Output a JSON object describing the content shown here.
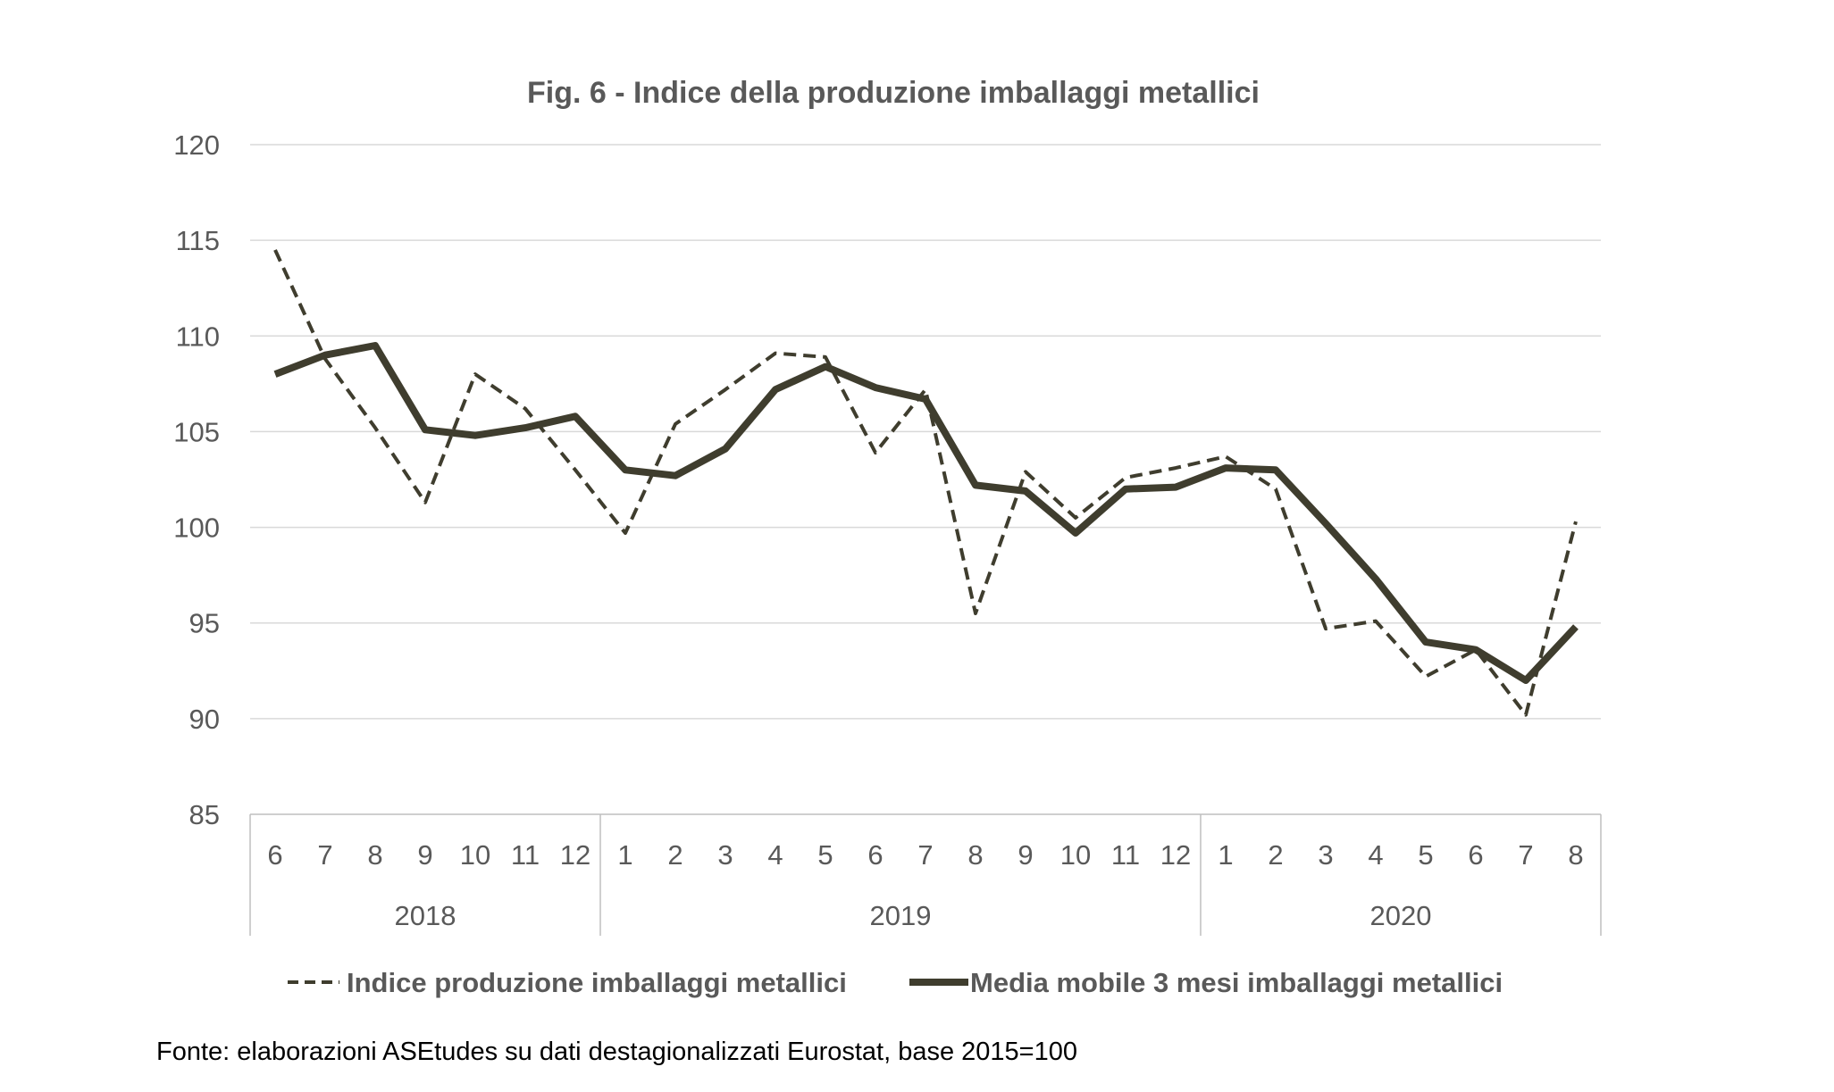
{
  "chart_data": {
    "type": "line",
    "title": "Fig. 6 - Indice della produzione imballaggi metallici",
    "xlabel": "",
    "ylabel": "",
    "ylim": [
      85,
      120
    ],
    "yticks": [
      "85",
      "90",
      "95",
      "100",
      "105",
      "110",
      "115",
      "120"
    ],
    "grid": true,
    "legend_position": "bottom",
    "categories": [
      "6",
      "7",
      "8",
      "9",
      "10",
      "11",
      "12",
      "1",
      "2",
      "3",
      "4",
      "5",
      "6",
      "7",
      "8",
      "9",
      "10",
      "11",
      "12",
      "1",
      "2",
      "3",
      "4",
      "5",
      "6",
      "7",
      "8"
    ],
    "year_groups": [
      {
        "label": "2018",
        "months": 7
      },
      {
        "label": "2019",
        "months": 12
      },
      {
        "label": "2020",
        "months": 8
      }
    ],
    "series": [
      {
        "name": "Indice produzione imballaggi metallici",
        "style": "dashed",
        "color": "#3f3d2e",
        "values": [
          114.5,
          108.8,
          105.2,
          101.3,
          108.0,
          106.2,
          103.0,
          99.7,
          105.4,
          107.2,
          109.1,
          108.9,
          103.9,
          107.2,
          95.5,
          102.9,
          100.5,
          102.6,
          103.1,
          103.7,
          102.0,
          94.7,
          95.1,
          92.2,
          93.6,
          90.2,
          100.3
        ]
      },
      {
        "name": "Media mobile 3 mesi imballaggi metallici",
        "style": "solid",
        "color": "#3f3d2e",
        "values": [
          108.0,
          109.0,
          109.5,
          105.1,
          104.8,
          105.2,
          105.8,
          103.0,
          102.7,
          104.1,
          107.2,
          108.4,
          107.3,
          106.7,
          102.2,
          101.9,
          99.7,
          102.0,
          102.1,
          103.1,
          103.0,
          100.2,
          97.3,
          94.0,
          93.6,
          92.0,
          94.8
        ]
      }
    ]
  },
  "source_note": "Fonte: elaborazioni ASEtudes su dati destagionalizzati Eurostat, base 2015=100",
  "colors": {
    "line": "#3f3d2e",
    "grid": "#d9d9d9",
    "text": "#595959"
  }
}
